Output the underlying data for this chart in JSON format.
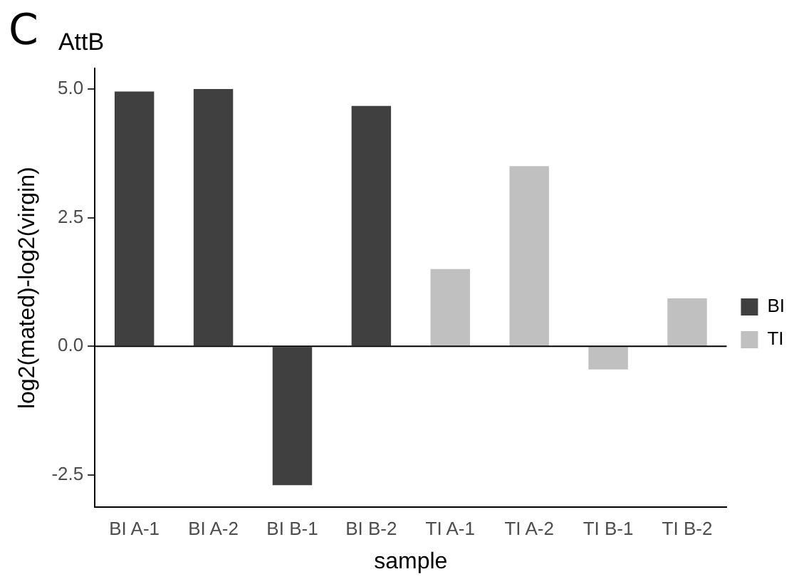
{
  "chart_data": {
    "type": "bar",
    "title": "AttB",
    "xlabel": "sample",
    "ylabel": "log2(mated)-log2(virgin)",
    "annotations": [
      "C"
    ],
    "categories": [
      "BI A-1",
      "BI A-2",
      "BI B-1",
      "BI B-2",
      "TI A-1",
      "TI A-2",
      "TI B-1",
      "TI B-2"
    ],
    "series": [
      {
        "name": "BI",
        "color": "#404040",
        "values": [
          4.95,
          5.0,
          -2.7,
          4.67,
          null,
          null,
          null,
          null
        ]
      },
      {
        "name": "TI",
        "color": "#c0c0c0",
        "values": [
          null,
          null,
          null,
          null,
          1.5,
          3.5,
          -0.45,
          0.93
        ]
      }
    ],
    "ylim": [
      -3.13,
      5.4
    ],
    "yticks": [
      {
        "value": -2.5,
        "label": "-2.5"
      },
      {
        "value": 0,
        "label": "0.0"
      },
      {
        "value": 2.5,
        "label": "2.5"
      },
      {
        "value": 5,
        "label": "5.0"
      }
    ],
    "ref_lines": [
      {
        "axis": "y",
        "value": 0,
        "color": "#000000"
      }
    ],
    "grid": false,
    "legend": "right"
  }
}
